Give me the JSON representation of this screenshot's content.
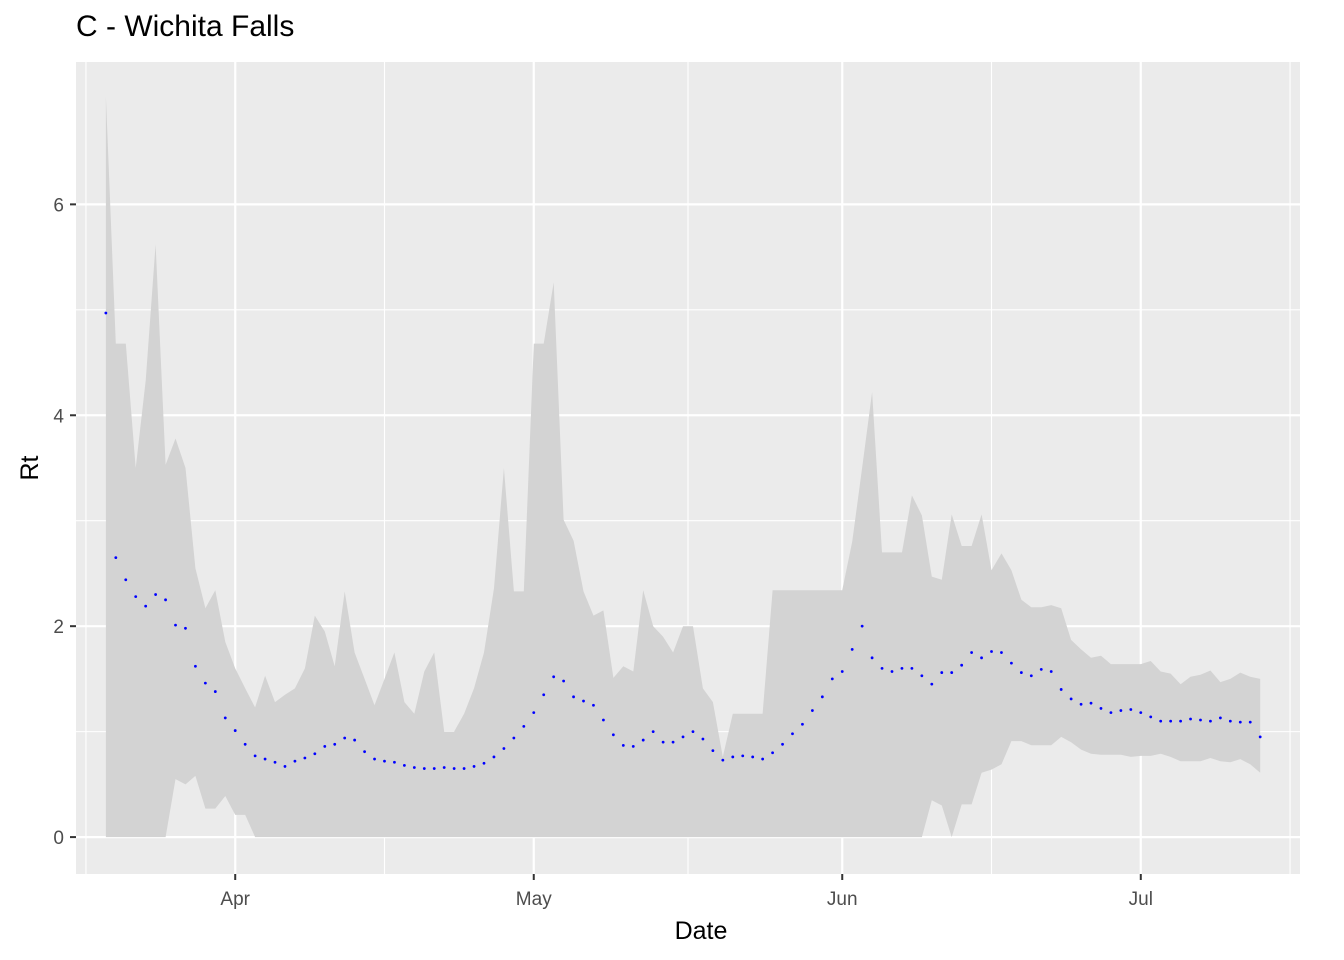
{
  "chart_data": {
    "type": "line",
    "title": "C - Wichita Falls",
    "xlabel": "Date",
    "ylabel": "Rt",
    "x_ticks": [
      {
        "date": "2020-04-01",
        "label": "Apr"
      },
      {
        "date": "2020-05-01",
        "label": "May"
      },
      {
        "date": "2020-06-01",
        "label": "Jun"
      },
      {
        "date": "2020-07-01",
        "label": "Jul"
      }
    ],
    "y_ticks": [
      0,
      2,
      4,
      6
    ],
    "xlim": [
      "2020-03-16",
      "2020-07-17"
    ],
    "ylim": [
      -0.35,
      7.35
    ],
    "grid": true,
    "colors": {
      "panel": "#ebebeb",
      "grid": "#ffffff",
      "ribbon": "#d3d3d3",
      "points": "#0000ff"
    },
    "series": [
      {
        "x_start": "2020-03-19",
        "dates_step_days": 1,
        "rt": [
          4.97,
          2.65,
          2.44,
          2.28,
          2.19,
          2.3,
          2.25,
          2.01,
          1.98,
          1.62,
          1.46,
          1.38,
          1.13,
          1.01,
          0.88,
          0.77,
          0.74,
          0.71,
          0.67,
          0.72,
          0.75,
          0.79,
          0.86,
          0.88,
          0.94,
          0.92,
          0.81,
          0.74,
          0.72,
          0.71,
          0.68,
          0.66,
          0.65,
          0.65,
          0.66,
          0.65,
          0.65,
          0.67,
          0.7,
          0.76,
          0.84,
          0.94,
          1.05,
          1.18,
          1.35,
          1.52,
          1.48,
          1.33,
          1.29,
          1.25,
          1.11,
          0.97,
          0.87,
          0.86,
          0.92,
          1.0,
          0.9,
          0.9,
          0.95,
          1.0,
          0.93,
          0.82,
          0.73,
          0.76,
          0.77,
          0.76,
          0.74,
          0.8,
          0.88,
          0.98,
          1.07,
          1.2,
          1.33,
          1.5,
          1.57,
          1.78,
          2.0,
          1.7,
          1.6,
          1.57,
          1.6,
          1.6,
          1.53,
          1.45,
          1.56,
          1.56,
          1.63,
          1.75,
          1.7,
          1.76,
          1.75,
          1.65,
          1.56,
          1.53,
          1.59,
          1.57,
          1.4,
          1.31,
          1.26,
          1.27,
          1.22,
          1.18,
          1.2,
          1.21,
          1.18,
          1.14,
          1.1,
          1.1,
          1.1,
          1.12,
          1.11,
          1.1,
          1.13,
          1.1,
          1.09,
          1.09,
          0.95
        ],
        "upper": [
          7.02,
          4.68,
          4.68,
          3.5,
          4.33,
          5.62,
          3.53,
          3.78,
          3.5,
          2.55,
          2.17,
          2.34,
          1.85,
          1.6,
          1.41,
          1.23,
          1.53,
          1.28,
          1.35,
          1.41,
          1.6,
          2.1,
          1.95,
          1.62,
          2.33,
          1.75,
          1.5,
          1.25,
          1.5,
          1.75,
          1.28,
          1.17,
          1.57,
          1.75,
          1.0,
          1.0,
          1.17,
          1.41,
          1.75,
          2.36,
          3.5,
          2.33,
          2.33,
          4.68,
          4.68,
          5.26,
          3.01,
          2.81,
          2.33,
          2.1,
          2.15,
          1.51,
          1.62,
          1.57,
          2.34,
          2.0,
          1.9,
          1.75,
          2.0,
          2.0,
          1.41,
          1.28,
          0.76,
          1.17,
          1.17,
          1.17,
          1.17,
          2.34,
          2.34,
          2.34,
          2.34,
          2.34,
          2.34,
          2.34,
          2.34,
          2.8,
          3.5,
          4.22,
          2.7,
          2.7,
          2.7,
          3.24,
          3.05,
          2.47,
          2.44,
          3.06,
          2.76,
          2.76,
          3.06,
          2.53,
          2.69,
          2.53,
          2.25,
          2.18,
          2.18,
          2.2,
          2.17,
          1.87,
          1.78,
          1.7,
          1.72,
          1.64,
          1.64,
          1.64,
          1.64,
          1.67,
          1.57,
          1.55,
          1.45,
          1.52,
          1.54,
          1.58,
          1.47,
          1.5,
          1.56,
          1.52,
          1.5,
          1.63,
          1.53
        ],
        "lower": [
          0.0,
          0.0,
          0.0,
          0.0,
          0.0,
          0.0,
          0.0,
          0.55,
          0.5,
          0.58,
          0.27,
          0.27,
          0.39,
          0.21,
          0.21,
          0.0,
          0.0,
          0.0,
          0.0,
          0.0,
          0.0,
          0.0,
          0.0,
          0.0,
          0.0,
          0.0,
          0.0,
          0.0,
          0.0,
          0.0,
          0.0,
          0.0,
          0.0,
          0.0,
          0.0,
          0.0,
          0.0,
          0.0,
          0.0,
          0.0,
          0.0,
          0.0,
          0.0,
          0.0,
          0.0,
          0.0,
          0.0,
          0.0,
          0.0,
          0.0,
          0.0,
          0.0,
          0.0,
          0.0,
          0.0,
          0.0,
          0.0,
          0.0,
          0.0,
          0.0,
          0.0,
          0.0,
          0.0,
          0.0,
          0.0,
          0.0,
          0.0,
          0.0,
          0.0,
          0.0,
          0.0,
          0.0,
          0.0,
          0.0,
          0.0,
          0.0,
          0.0,
          0.0,
          0.0,
          0.0,
          0.0,
          0.0,
          0.0,
          0.35,
          0.3,
          0.0,
          0.31,
          0.31,
          0.61,
          0.64,
          0.69,
          0.91,
          0.91,
          0.87,
          0.87,
          0.87,
          0.95,
          0.9,
          0.83,
          0.79,
          0.78,
          0.78,
          0.78,
          0.76,
          0.77,
          0.77,
          0.79,
          0.76,
          0.72,
          0.72,
          0.72,
          0.75,
          0.72,
          0.71,
          0.74,
          0.69,
          0.61,
          0.62,
          0.38
        ]
      }
    ]
  }
}
